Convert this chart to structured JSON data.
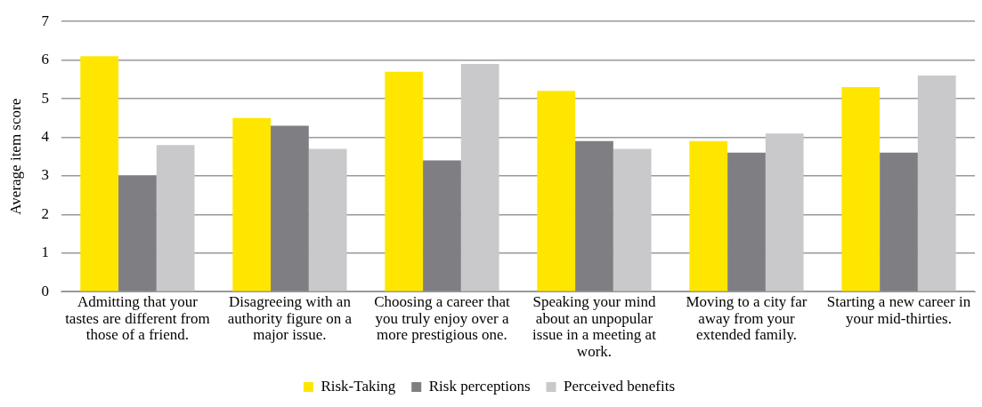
{
  "chart_data": {
    "type": "bar",
    "ylabel": "Average item score",
    "categories": [
      "Admitting that your tastes are different from those of a friend.",
      "Disagreeing with an authority figure on a major issue.",
      "Choosing a career that you truly enjoy over a more prestigious one.",
      "Speaking your mind about an unpopular issue in a meeting at work.",
      "Moving to a city far away from your extended family.",
      "Starting a new career in your mid-thirties."
    ],
    "series": [
      {
        "name": "Risk-Taking",
        "color": "#ffe600",
        "values": [
          6.1,
          4.5,
          5.7,
          5.2,
          3.9,
          5.3
        ]
      },
      {
        "name": "Risk perceptions",
        "color": "#7f7f83",
        "values": [
          3.0,
          4.3,
          3.4,
          3.9,
          3.6,
          3.6
        ]
      },
      {
        "name": "Perceived benefits",
        "color": "#c9c9cb",
        "values": [
          3.8,
          3.7,
          5.9,
          3.7,
          4.1,
          5.6
        ]
      }
    ],
    "ylim": [
      0,
      7
    ],
    "yticks": [
      0,
      1,
      2,
      3,
      4,
      5,
      6,
      7
    ],
    "grid": "y",
    "legend": "bottom"
  }
}
